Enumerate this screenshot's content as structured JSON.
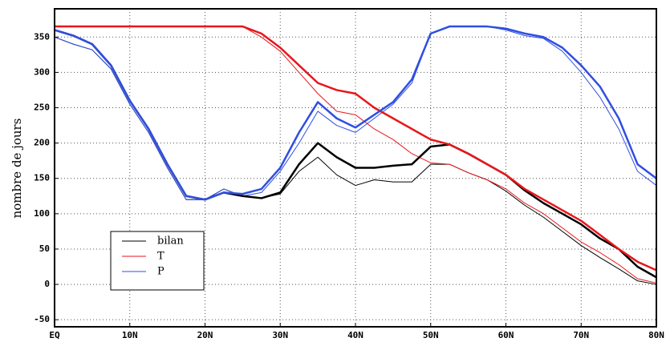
{
  "chart_data": {
    "type": "line",
    "ylabel": "nombre de jours",
    "x": [
      0,
      2.5,
      5,
      7.5,
      10,
      12.5,
      15,
      17.5,
      20,
      22.5,
      25,
      27.5,
      30,
      32.5,
      35,
      37.5,
      40,
      42.5,
      45,
      47.5,
      50,
      52.5,
      55,
      57.5,
      60,
      62.5,
      65,
      67.5,
      70,
      72.5,
      75,
      77.5,
      80
    ],
    "xlim": [
      0,
      80
    ],
    "xticks": [
      {
        "value": 0,
        "label": "EQ"
      },
      {
        "value": 10,
        "label": "10N"
      },
      {
        "value": 20,
        "label": "20N"
      },
      {
        "value": 30,
        "label": "30N"
      },
      {
        "value": 40,
        "label": "40N"
      },
      {
        "value": 50,
        "label": "50N"
      },
      {
        "value": 60,
        "label": "60N"
      },
      {
        "value": 70,
        "label": "70N"
      },
      {
        "value": 80,
        "label": "80N"
      }
    ],
    "ylim": [
      -60,
      390
    ],
    "yticks": [
      -50,
      0,
      50,
      100,
      150,
      200,
      250,
      300,
      350
    ],
    "grid": true,
    "legend": "lower left",
    "series": [
      {
        "name": "bilan",
        "color": "#000000",
        "linewidth": 1,
        "values": [
          350,
          340,
          332,
          305,
          255,
          215,
          165,
          120,
          120,
          135,
          125,
          122,
          128,
          160,
          180,
          155,
          140,
          148,
          145,
          145,
          170,
          170,
          158,
          148,
          132,
          112,
          95,
          75,
          55,
          38,
          22,
          5,
          0
        ]
      },
      {
        "name": "T",
        "color": "#e8161b",
        "linewidth": 1,
        "values": [
          365,
          365,
          365,
          365,
          365,
          365,
          365,
          365,
          365,
          365,
          365,
          350,
          330,
          300,
          270,
          245,
          240,
          220,
          205,
          185,
          172,
          170,
          158,
          148,
          135,
          115,
          100,
          80,
          60,
          45,
          28,
          8,
          2
        ]
      },
      {
        "name": "P",
        "color": "#2f4fe0",
        "linewidth": 1,
        "values": [
          350,
          340,
          332,
          305,
          255,
          215,
          165,
          120,
          120,
          135,
          125,
          130,
          160,
          200,
          245,
          225,
          215,
          235,
          255,
          285,
          355,
          365,
          365,
          365,
          360,
          352,
          348,
          330,
          300,
          265,
          220,
          160,
          140
        ]
      },
      {
        "color": "#000000",
        "linewidth": 2.5,
        "values": [
          360,
          352,
          340,
          310,
          260,
          220,
          170,
          125,
          120,
          130,
          125,
          122,
          130,
          170,
          200,
          180,
          165,
          165,
          168,
          170,
          195,
          198,
          185,
          170,
          155,
          133,
          115,
          100,
          85,
          65,
          50,
          25,
          10
        ]
      },
      {
        "color": "#e8161b",
        "linewidth": 2.5,
        "values": [
          365,
          365,
          365,
          365,
          365,
          365,
          365,
          365,
          365,
          365,
          365,
          355,
          335,
          310,
          285,
          275,
          270,
          250,
          235,
          220,
          205,
          198,
          185,
          170,
          155,
          135,
          120,
          105,
          90,
          70,
          50,
          32,
          20
        ]
      },
      {
        "color": "#2f4fe0",
        "linewidth": 2.5,
        "values": [
          360,
          352,
          340,
          310,
          260,
          220,
          170,
          125,
          120,
          130,
          128,
          135,
          165,
          215,
          258,
          235,
          222,
          240,
          258,
          290,
          355,
          365,
          365,
          365,
          362,
          355,
          350,
          335,
          310,
          280,
          235,
          170,
          150
        ]
      }
    ]
  }
}
